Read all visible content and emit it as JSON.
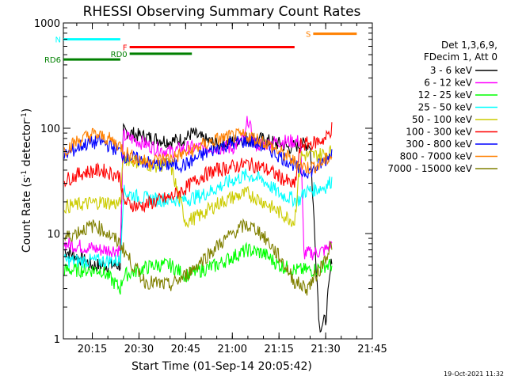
{
  "chart_data": {
    "type": "line",
    "title": "RHESSI Observing Summary Count Rates",
    "xlabel": "Start Time (01-Sep-14 20:05:42)",
    "ylabel_main": "Count Rate (s",
    "ylabel_sup1": "-1",
    "ylabel_mid": " detector",
    "ylabel_sup2": "-1",
    "ylabel_end": ")",
    "yscale": "log",
    "ylim": [
      1,
      1000
    ],
    "xlim_minutes": [
      "20:05:42",
      "21:45:00"
    ],
    "x_ticks": [
      "20:15",
      "20:30",
      "20:45",
      "21:00",
      "21:15",
      "21:30",
      "21:45"
    ],
    "y_ticks": [
      "1",
      "10",
      "100",
      "1000"
    ],
    "legend": {
      "placement": "right",
      "header1": "Det 1,3,6,9,",
      "header2": "FDecim 1, Att 0",
      "entries": [
        {
          "label": "3 - 6 keV",
          "color": "#000000"
        },
        {
          "label": "6 - 12 keV",
          "color": "#ff00ff"
        },
        {
          "label": "12 - 25 keV",
          "color": "#00ff00"
        },
        {
          "label": "25 - 50 keV",
          "color": "#00ffff"
        },
        {
          "label": "50 - 100 keV",
          "color": "#cccc00"
        },
        {
          "label": "100 - 300 keV",
          "color": "#ff0000"
        },
        {
          "label": "300 - 800 keV",
          "color": "#0000ff"
        },
        {
          "label": "800 - 7000 keV",
          "color": "#ff8000"
        },
        {
          "label": "7000 - 15000 keV",
          "color": "#808000"
        }
      ]
    },
    "series": [
      {
        "name": "3 - 6 keV",
        "color": "#000000",
        "x": [
          "20:06",
          "20:15",
          "20:24",
          "20:25",
          "20:30",
          "20:35",
          "20:40",
          "20:45",
          "20:47",
          "20:50",
          "20:55",
          "21:00",
          "21:03",
          "21:05",
          "21:08",
          "21:12",
          "21:16",
          "21:18",
          "21:22",
          "21:25",
          "21:28",
          "21:30",
          "21:32"
        ],
        "y": [
          7,
          5,
          5,
          95,
          85,
          80,
          75,
          80,
          90,
          80,
          70,
          75,
          80,
          80,
          80,
          75,
          70,
          65,
          70,
          70,
          1.3,
          1.5,
          6
        ]
      },
      {
        "name": "6 - 12 keV",
        "color": "#ff00ff",
        "x": [
          "20:06",
          "20:12",
          "20:18",
          "20:24",
          "20:25",
          "20:30",
          "20:35",
          "20:40",
          "20:45",
          "20:50",
          "20:55",
          "21:00",
          "21:04",
          "21:05",
          "21:07",
          "21:10",
          "21:15",
          "21:20",
          "21:22",
          "21:23",
          "21:26",
          "21:30",
          "21:32"
        ],
        "y": [
          8,
          7.5,
          7,
          7,
          85,
          75,
          65,
          60,
          65,
          65,
          65,
          65,
          80,
          125,
          70,
          70,
          75,
          75,
          75,
          6.5,
          6.5,
          7,
          8
        ]
      },
      {
        "name": "12 - 25 keV",
        "color": "#00ff00",
        "x": [
          "20:06",
          "20:12",
          "20:18",
          "20:24",
          "20:25",
          "20:30",
          "20:35",
          "20:40",
          "20:45",
          "20:50",
          "20:55",
          "21:00",
          "21:05",
          "21:10",
          "21:15",
          "21:20",
          "21:22",
          "21:23",
          "21:26",
          "21:30",
          "21:32"
        ],
        "y": [
          4.5,
          4.5,
          4.5,
          3,
          4,
          4.5,
          5,
          5,
          4,
          4.5,
          5,
          6,
          7,
          6.5,
          5,
          4.5,
          4.5,
          4.5,
          4.5,
          5,
          5
        ]
      },
      {
        "name": "25 - 50 keV",
        "color": "#00ffff",
        "x": [
          "20:06",
          "20:12",
          "20:18",
          "20:24",
          "20:25",
          "20:30",
          "20:35",
          "20:40",
          "20:45",
          "20:50",
          "20:55",
          "21:00",
          "21:05",
          "21:10",
          "21:15",
          "21:20",
          "21:22",
          "21:23",
          "21:26",
          "21:30",
          "21:32"
        ],
        "y": [
          5.5,
          5.5,
          5.5,
          5.5,
          25,
          22,
          21,
          21,
          21,
          23,
          27,
          32,
          36,
          32,
          24,
          21,
          21,
          25,
          26,
          28,
          32
        ]
      },
      {
        "name": "50 - 100 keV",
        "color": "#cccc00",
        "x": [
          "20:06",
          "20:12",
          "20:18",
          "20:24",
          "20:25",
          "20:30",
          "20:35",
          "20:40",
          "20:45",
          "20:50",
          "20:55",
          "21:00",
          "21:05",
          "21:10",
          "21:15",
          "21:20",
          "21:22",
          "21:26",
          "21:30",
          "21:32"
        ],
        "y": [
          18,
          19,
          20,
          19,
          52,
          48,
          44,
          46,
          13,
          15,
          19,
          22,
          24,
          20,
          16,
          13,
          55,
          55,
          58,
          60
        ]
      },
      {
        "name": "100 - 300 keV",
        "color": "#ff0000",
        "x": [
          "20:06",
          "20:12",
          "20:18",
          "20:24",
          "20:25",
          "20:30",
          "20:35",
          "20:40",
          "20:45",
          "20:50",
          "20:55",
          "21:00",
          "21:05",
          "21:10",
          "21:15",
          "21:20",
          "21:22",
          "21:26",
          "21:30",
          "21:32"
        ],
        "y": [
          32,
          38,
          40,
          35,
          20,
          18,
          20,
          22,
          27,
          35,
          40,
          43,
          46,
          42,
          35,
          28,
          70,
          72,
          80,
          100
        ]
      },
      {
        "name": "300 - 800 keV",
        "color": "#0000ff",
        "x": [
          "20:06",
          "20:12",
          "20:18",
          "20:24",
          "20:25",
          "20:30",
          "20:35",
          "20:40",
          "20:45",
          "20:50",
          "20:55",
          "21:00",
          "21:05",
          "21:10",
          "21:15",
          "21:20",
          "21:22",
          "21:26",
          "21:30",
          "21:32"
        ],
        "y": [
          55,
          70,
          75,
          60,
          55,
          50,
          45,
          45,
          45,
          55,
          65,
          72,
          76,
          68,
          55,
          45,
          38,
          40,
          50,
          60
        ]
      },
      {
        "name": "800 - 7000 keV",
        "color": "#ff8000",
        "x": [
          "20:06",
          "20:10",
          "20:15",
          "20:20",
          "20:24",
          "20:27",
          "20:32",
          "20:40",
          "20:45",
          "20:50",
          "20:55",
          "21:00",
          "21:05",
          "21:10",
          "21:15",
          "21:20",
          "21:24",
          "21:28",
          "21:32"
        ],
        "y": [
          62,
          75,
          88,
          80,
          68,
          55,
          48,
          52,
          58,
          68,
          78,
          84,
          85,
          75,
          60,
          48,
          42,
          45,
          55
        ]
      },
      {
        "name": "7000 - 15000 keV",
        "color": "#808000",
        "x": [
          "20:06",
          "20:12",
          "20:16",
          "20:20",
          "20:24",
          "20:28",
          "20:32",
          "20:40",
          "20:45",
          "20:50",
          "20:55",
          "21:00",
          "21:04",
          "21:08",
          "21:12",
          "21:16",
          "21:20",
          "21:24",
          "21:28",
          "21:32"
        ],
        "y": [
          9,
          11,
          12,
          10,
          8,
          5,
          3.5,
          3.2,
          4,
          5.5,
          7.5,
          10,
          12,
          11,
          8,
          5.5,
          3.5,
          3,
          4.5,
          8
        ]
      }
    ],
    "annotations": [
      {
        "text": "N",
        "color": "#00ffff",
        "x_start": "20:05:42",
        "x_end": "20:24",
        "y": 700
      },
      {
        "text": "F",
        "color": "#ff0000",
        "x_start": "20:27",
        "x_end": "21:20",
        "y": 590
      },
      {
        "text": "RD0",
        "color": "#008000",
        "x_start": "20:27",
        "x_end": "20:47",
        "y": 510
      },
      {
        "text": "RD6",
        "color": "#008000",
        "x_start": "20:05:42",
        "x_end": "20:24",
        "y": 450
      },
      {
        "text": "S",
        "color": "#ff8000",
        "x_start": "21:26",
        "x_end": "21:40",
        "y": 790
      }
    ]
  },
  "footer_date": "19-Oct-2021 11:32"
}
